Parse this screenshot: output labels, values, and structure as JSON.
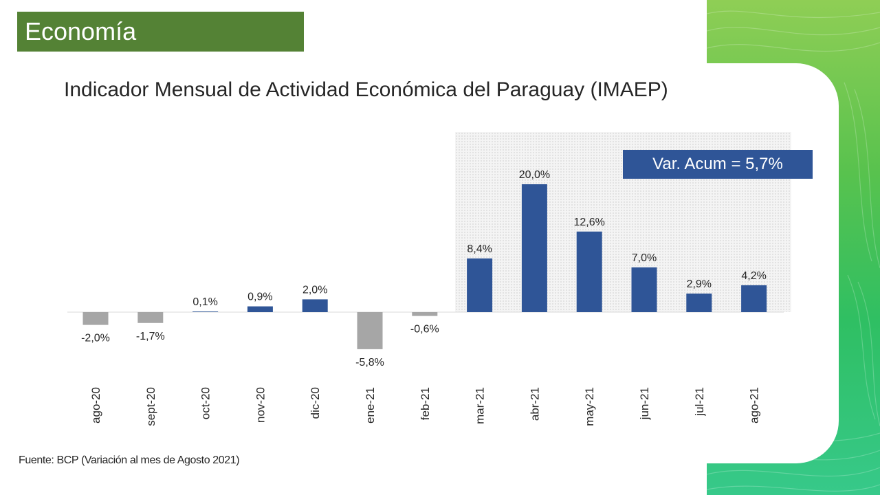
{
  "header": {
    "section_label": "Economía",
    "title": "Indicador Mensual de Actividad Económica del Paraguay (IMAEP)"
  },
  "annotation": {
    "label": "Var. Acum = 5,7%"
  },
  "footer": {
    "source": "Fuente: BCP (Variación al mes de Agosto 2021)"
  },
  "colors": {
    "section_tag": "#548235",
    "positive_bar": "#2f5597",
    "negative_bar": "#a6a6a6",
    "text": "#262626",
    "green_band": "#4cc35a"
  },
  "chart_data": {
    "type": "bar",
    "title": "Indicador Mensual de Actividad Económica del Paraguay (IMAEP)",
    "categories": [
      "ago-20",
      "sept-20",
      "oct-20",
      "nov-20",
      "dic-20",
      "ene-21",
      "feb-21",
      "mar-21",
      "abr-21",
      "may-21",
      "jun-21",
      "jul-21",
      "ago-21"
    ],
    "values": [
      -2.0,
      -1.7,
      0.1,
      0.9,
      2.0,
      -5.8,
      -0.6,
      8.4,
      20.0,
      12.6,
      7.0,
      2.9,
      4.2
    ],
    "data_labels": [
      "-2,0%",
      "-1,7%",
      "0,1%",
      "0,9%",
      "2,0%",
      "-5,8%",
      "-0,6%",
      "8,4%",
      "20,0%",
      "12,6%",
      "7,0%",
      "2,9%",
      "4,2%"
    ],
    "unit": "%",
    "xlabel": "",
    "ylabel": "",
    "grid": false,
    "legend": "none",
    "highlighted_categories": [
      "mar-21",
      "abr-21",
      "may-21",
      "jun-21",
      "jul-21",
      "ago-21"
    ]
  }
}
